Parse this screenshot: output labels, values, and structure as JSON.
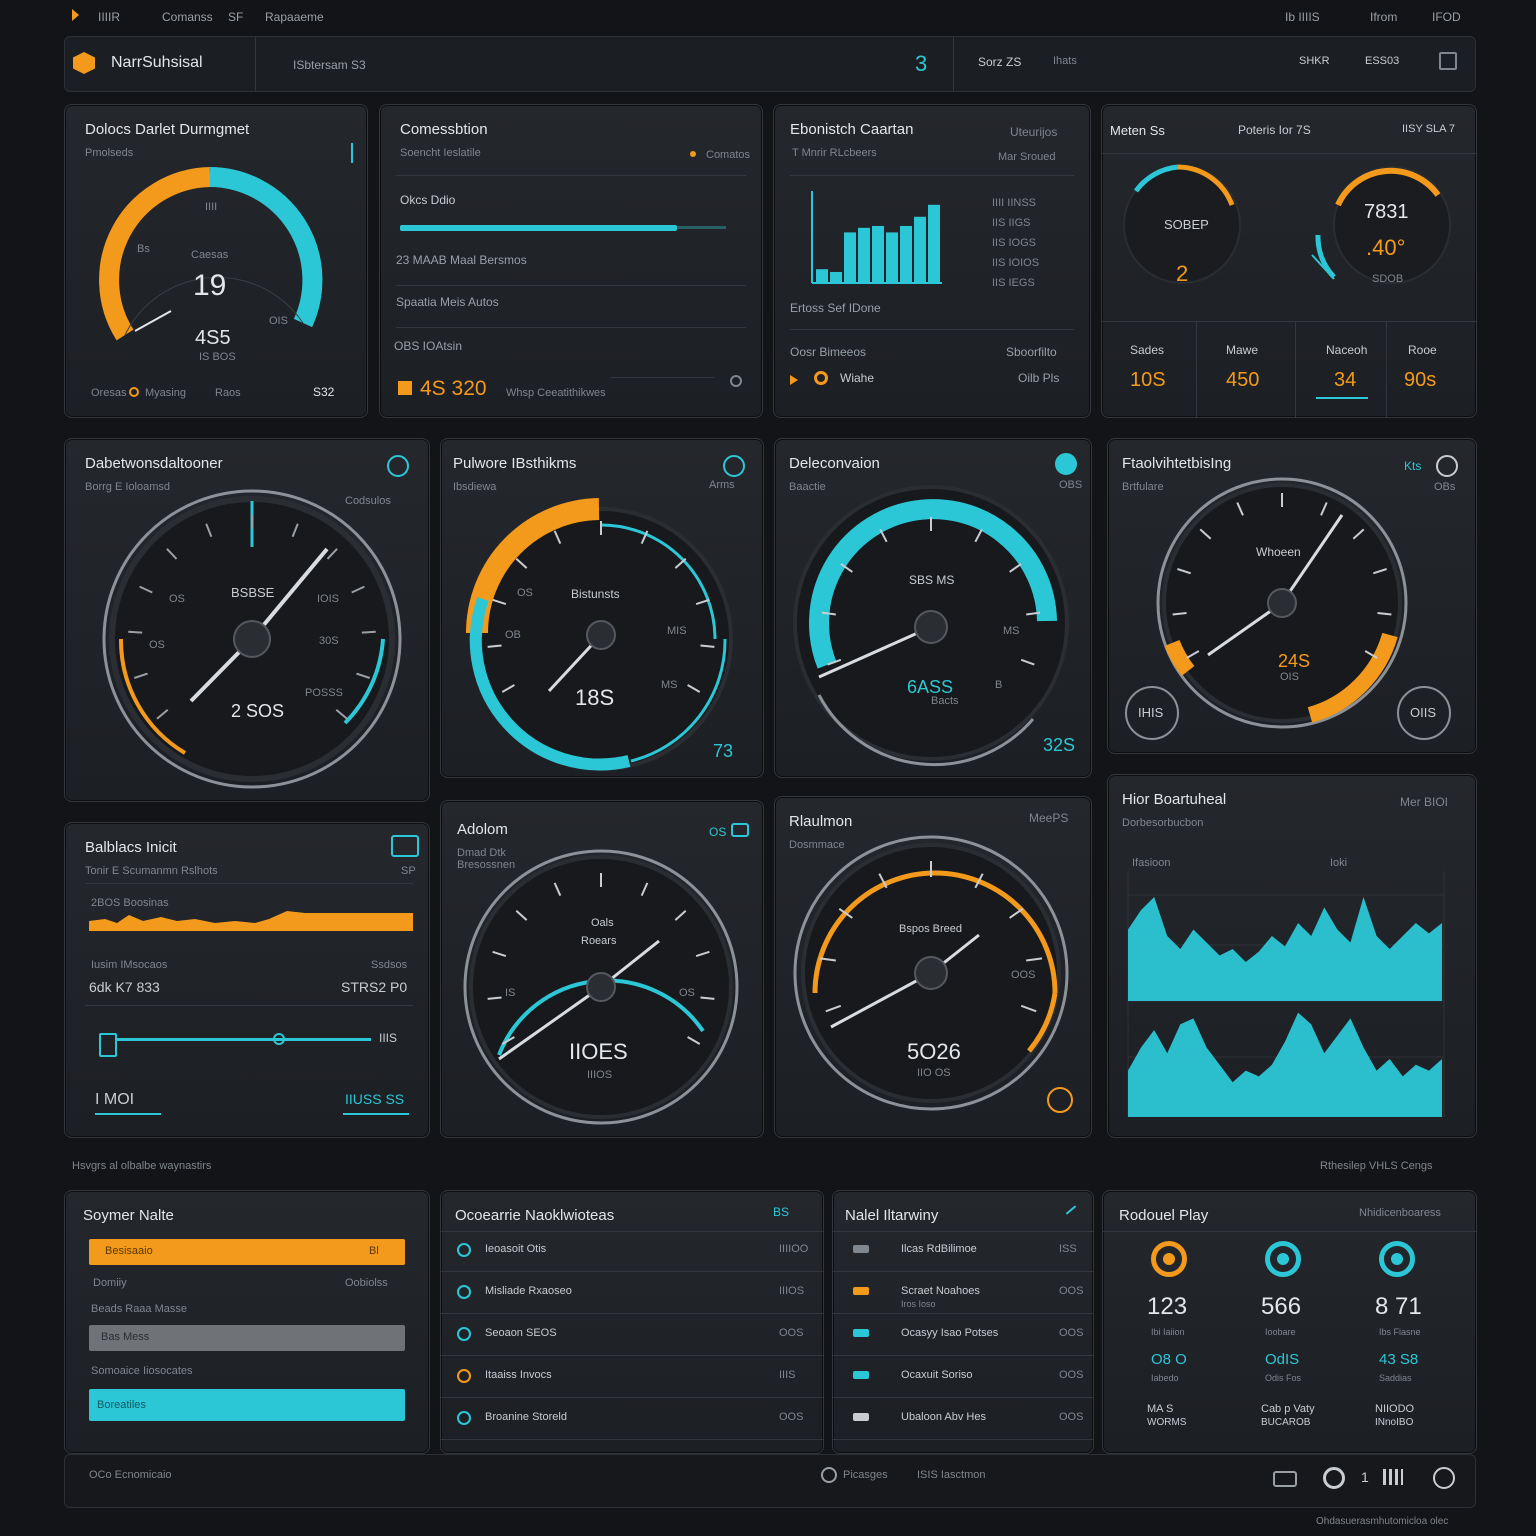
{
  "topbar": {
    "left": [
      "IIIIR",
      "Comanss",
      "SF",
      "Rapaaeme"
    ],
    "right": [
      "Ib IIIIS",
      "Ifrom",
      "IFOD"
    ]
  },
  "header": {
    "app_title": "NarrSuhsisal",
    "search": "ISbtersam S3",
    "center_num": "3",
    "center_a": "Sorz ZS",
    "center_b": "Ihats",
    "right_a": "SHKR",
    "right_b": "ESS03"
  },
  "colors": {
    "orange": "#f39a1c",
    "cyan": "#2cc7d6",
    "bg": "#121417"
  },
  "row1": {
    "p1": {
      "title": "Dolocs Darlet Durmgmet",
      "sub": "Pmolseds",
      "left": "Bs",
      "top": "IIII",
      "right": "OIS",
      "label": "Caesas",
      "value": "19",
      "value2": "4S5",
      "value2_sub": "IS BOS",
      "foot": [
        "Oresas",
        "Myasing",
        "Raos",
        "S32"
      ],
      "gauge_fraction": 0.75
    },
    "p2": {
      "title": "Comessbtion",
      "sub": "Soencht Ieslatile",
      "legend": "Comatos",
      "r1": "Okcs Ddio",
      "r2": "23 MAAB Maal Bersmos",
      "r3": "Spaatia Meis Autos",
      "r4": "OBS IOAtsin",
      "value": "4S 320",
      "value_label": "Whsp Ceeatithikwes",
      "progress": 0.85
    },
    "p3": {
      "title": "Ebonistch Caartan",
      "right": "Uteurijos",
      "sub": "T Mnrir RLcbeers",
      "sub_right": "Mar Sroued",
      "labels": [
        "IIII IINSS",
        "IIS IIGS",
        "IIS IOGS",
        "IIS IOIOS",
        "IIS IEGS"
      ],
      "caption": "Ertoss Sef IDone",
      "foot_l": "Oosr Bimeeos",
      "foot_r": "Sboorfilto",
      "foot2": "Wiahe",
      "foot3": "Oilb Pls"
    },
    "p4": {
      "title": "Meten Ss",
      "mid": "Poteris Ior 7S",
      "right": "IISY SLA 7",
      "g1_label": "SOBEP",
      "g1_value": "2",
      "g2_label": "7831",
      "g2_value": ".40°",
      "g2_sub": "SDOB",
      "stats": [
        {
          "label": "Sades",
          "value": "10S"
        },
        {
          "label": "Mawe",
          "value": "450"
        },
        {
          "label": "Naceoh",
          "value": "34"
        },
        {
          "label": "Rooe",
          "value": "90s"
        }
      ]
    }
  },
  "row2": {
    "p1": {
      "title": "Dabetwonsdaltooner",
      "sub": "Borrg E Ioloamsd",
      "right": "Codsulos",
      "center": "BSBSE",
      "value": "2 SOS",
      "ticks": [
        "OS",
        "IOIS",
        "30S",
        "OS",
        "POSSS"
      ]
    },
    "p2": {
      "title": "Pulwore IBsthikms",
      "sub": "Ibsdiewa",
      "right": "Arms",
      "center": "Bistunsts",
      "value": "18S",
      "ticks": [
        "OS",
        "OB",
        "MIS",
        "MS"
      ],
      "foot": "73"
    },
    "p3": {
      "title": "Deleconvaion",
      "sub": "Baactie",
      "right": "OBS",
      "center": "SBS MS",
      "value": "6ASS",
      "value_sub": "Bacts",
      "ticks": [
        "MS",
        "B"
      ],
      "foot": "32S"
    },
    "p4": {
      "title": "FtaolvihtetbisIng",
      "sub": "Brtfulare",
      "right": "Kts",
      "corner": "OBs",
      "center": "Whoeen",
      "value": "24S",
      "value_sub": "OIS",
      "left_btn": "IHIS",
      "right_btn": "OIIS"
    }
  },
  "row3": {
    "p1": {
      "title": "Balblacs Inicit",
      "sub": "Tonir E Scumanmn Rslhots",
      "right": "SP",
      "l1": "2BOS Boosinas",
      "l2": "Iusim IMsocaos",
      "r2": "Ssdsos",
      "v1": "6dk K7 833",
      "v2": "STRS2 P0",
      "mark": "IIIS",
      "foot_l": "I MOI",
      "foot_r": "IIUSS SS"
    },
    "p2": {
      "title": "Adolom",
      "sub": "Dmad Dtk",
      "sub2": "Bresossnen",
      "right": "OS",
      "center1": "Oals",
      "center2": "Roears",
      "ticks": [
        "IS",
        "OS"
      ],
      "value": "IIOES",
      "value_sub": "IIIOS"
    },
    "p3": {
      "title": "Rlaulmon",
      "sub": "Dosmmace",
      "right": "MeePS",
      "center": "Bspos Breed",
      "value": "5O26",
      "value_sub": "IIO OS",
      "tick": "OOS"
    },
    "p4": {
      "title": "Hior Boartuheal",
      "sub": "Dorbesorbucbon",
      "right": "Mer BIOI",
      "l1": "Ifasioon",
      "l2": "Ioki"
    }
  },
  "row3_footer": {
    "left": "Hsvgrs al olbalbe waynastirs",
    "right": "Rthesilep  VHLS Cengs"
  },
  "row4": {
    "p1": {
      "title": "Soymer Nalte",
      "b1": "Besisaaio",
      "b1_r": "Bl",
      "l1": "Domiiy",
      "l1_r": "Oobiolss",
      "l2": "Beads Raaa Masse",
      "b2": "Bas Mess",
      "l3": "Somoaice Iiosocates",
      "b3": "Boreatiles"
    },
    "p2": {
      "title": "Ocoearrie Naoklwioteas",
      "right": "BS",
      "items": [
        {
          "label": "Ieoasoit  Otis",
          "value": "IIIIOO"
        },
        {
          "label": "Misliade  Rxaoseo",
          "value": "IIIOS"
        },
        {
          "label": "Seoaon  SEOS",
          "value": "OOS"
        },
        {
          "label": "Itaaiss  Invocs",
          "value": "IIIS"
        },
        {
          "label": "Broanine  Storeld",
          "value": "OOS"
        }
      ]
    },
    "p3": {
      "title": "Nalel Iltarwiny",
      "items": [
        {
          "label": "Ilcas RdBilimoe",
          "value": "ISS"
        },
        {
          "label": "Scraet Noahoes",
          "sub": "Iros Ioso",
          "value": "OOS"
        },
        {
          "label": "Ocasyy Isao Potses",
          "value": "OOS"
        },
        {
          "label": "Ocaxuit  Soriso",
          "value": "OOS"
        },
        {
          "label": "Ubaloon Abv Hes",
          "value": "OOS"
        }
      ]
    },
    "p4": {
      "title": "Rodouel Play",
      "right": "Nhidicenboaress",
      "cols": [
        {
          "value": "123",
          "sub": "Ibi Iaiion",
          "v2": "O8 O",
          "v2sub": "Iabedo",
          "foot": "MA S",
          "foot2": "WORMS"
        },
        {
          "value": "566",
          "sub": "Ioobare",
          "v2": "OdIS",
          "v2sub": "Odis Fos",
          "foot": "Cab p Vaty",
          "foot2": "BUCAROB"
        },
        {
          "value": "8 71",
          "sub": "Ibs Fiasne",
          "v2": "43 S8",
          "v2sub": "Saddias",
          "foot": "NIIODO",
          "foot2": "INnoIBO"
        }
      ]
    }
  },
  "bottom": {
    "left": "OCo Ecnomicaio",
    "mid1": "Picasges",
    "mid2": "ISIS Iasctmon",
    "num": "1",
    "corner": "Ohdasuerasmhutomicloa olec"
  }
}
